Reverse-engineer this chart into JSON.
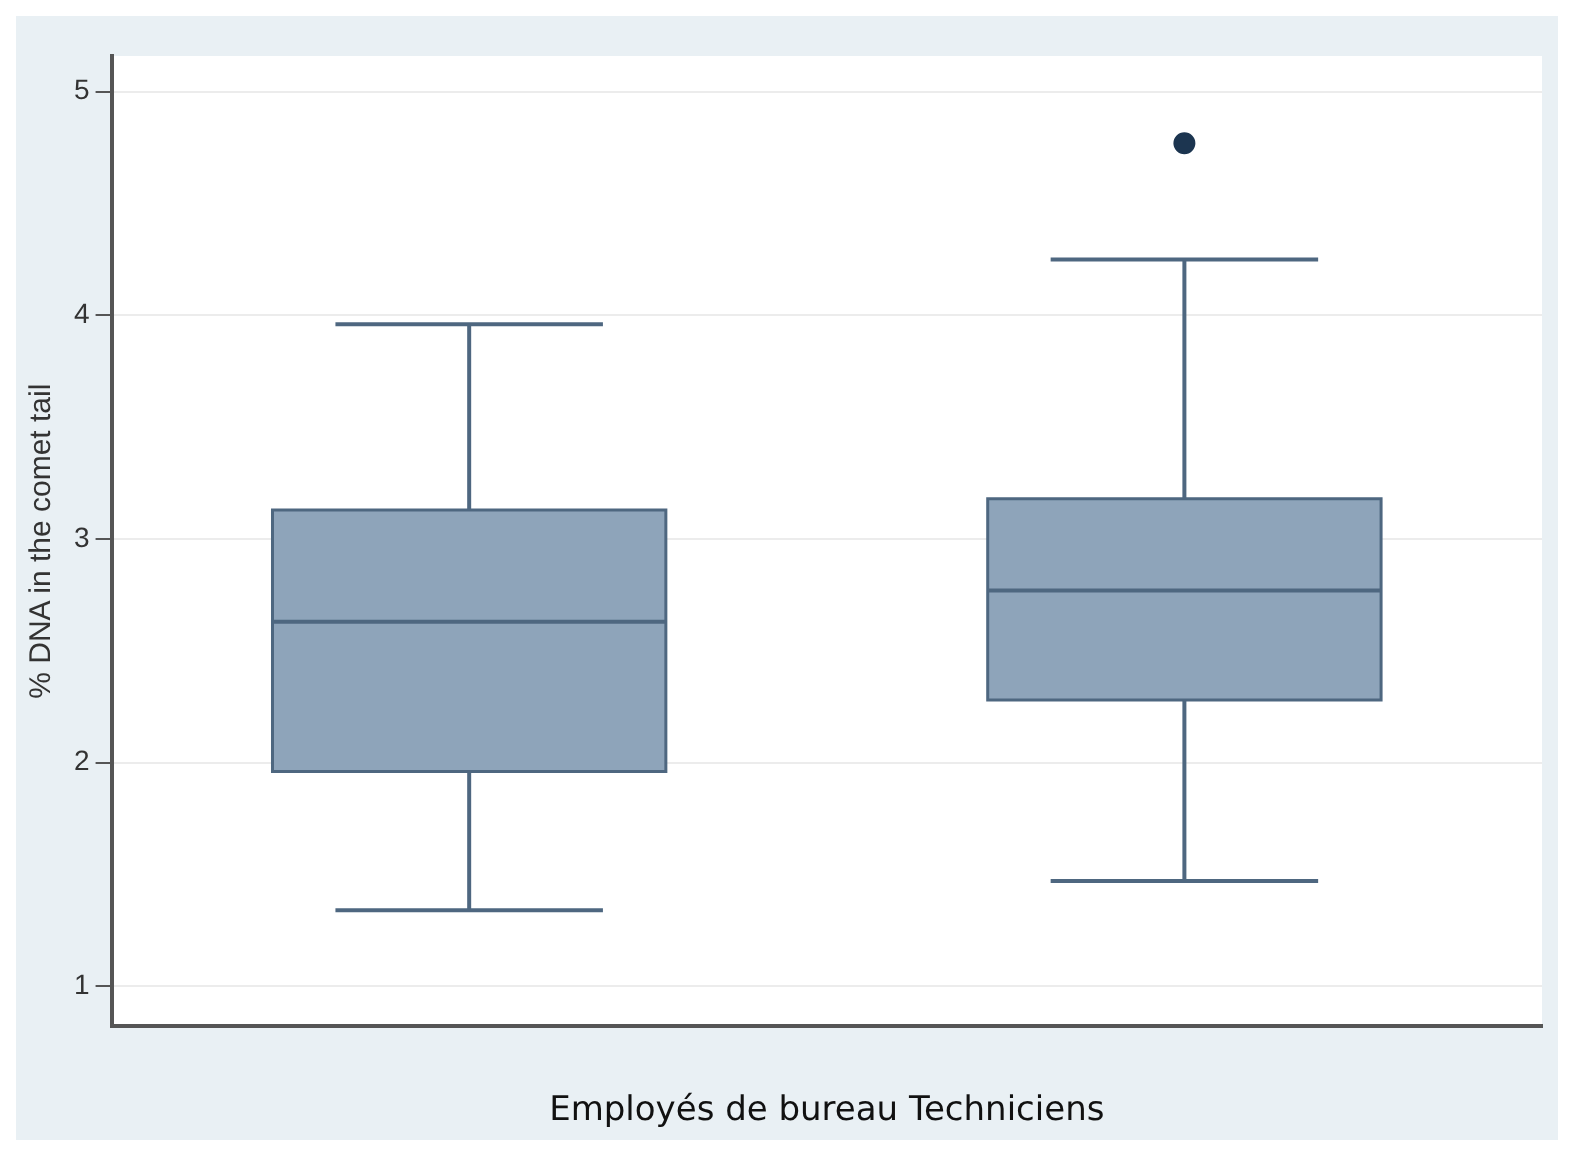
{
  "chart_data": {
    "type": "box",
    "xlabel": "Employés de bureau Techniciens",
    "ylabel": "% DNA in the comet tail",
    "categories": [
      null,
      null
    ],
    "color": "#8ea4ba",
    "boxes": [
      {
        "low": 1.34,
        "q1": 1.96,
        "median": 2.63,
        "q3": 3.13,
        "high": 3.96
      },
      {
        "low": 1.47,
        "q1": 2.28,
        "median": 2.77,
        "q3": 3.18,
        "high": 4.25,
        "outliers": [
          4.77
        ]
      }
    ],
    "ylim": [
      0.82,
      5.16
    ],
    "yticks": [
      1,
      2,
      3,
      4,
      5
    ],
    "grid": "y"
  }
}
